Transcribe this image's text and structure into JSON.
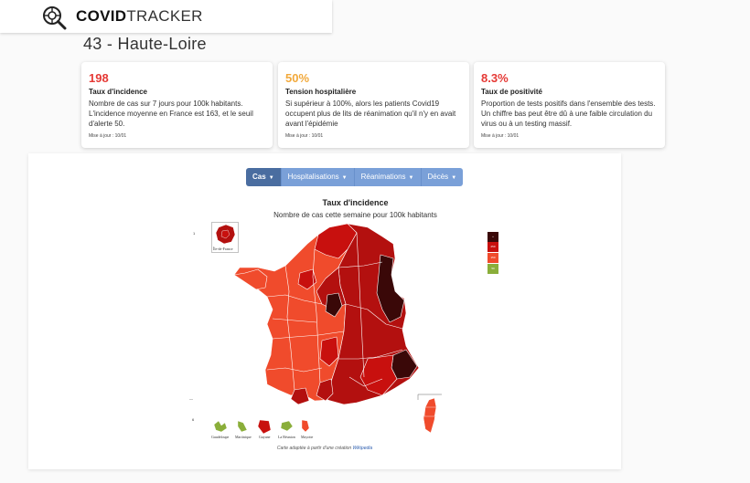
{
  "header": {
    "brand_bold": "COVID",
    "brand_light": "TRACKER",
    "logo_icon": "virus-magnifier-icon"
  },
  "page": {
    "title": "43 - Haute-Loire"
  },
  "cards": [
    {
      "value": "198",
      "value_color": "#e53935",
      "title": "Taux d'incidence",
      "description": "Nombre de cas sur 7 jours pour 100k habitants. L'incidence moyenne en France est 163, et le seuil d'alerte 50.",
      "updated": "Mise à jour : 10/01"
    },
    {
      "value": "50%",
      "value_color": "#f2a93b",
      "title": "Tension hospitalière",
      "description": "Si supérieur à 100%, alors les patients Covid19 occupent plus de lits de réanimation qu'il n'y en avait avant l'épidémie",
      "updated": "Mise à jour : 10/01"
    },
    {
      "value": "8.3%",
      "value_color": "#e53935",
      "title": "Taux de positivité",
      "description": "Proportion de tests positifs dans l'ensemble des tests. Un chiffre bas peut être dû à une faible circulation du virus ou à un testing massif.",
      "updated": "Mise à jour : 10/01"
    }
  ],
  "tabs": [
    {
      "label": "Cas",
      "active": true
    },
    {
      "label": "Hospitalisations",
      "active": false
    },
    {
      "label": "Réanimations",
      "active": false
    },
    {
      "label": "Décès",
      "active": false
    }
  ],
  "map": {
    "title": "Taux d'incidence",
    "subtitle": "Nombre de cas cette semaine pour 100k habitants",
    "inset_label": "Île-de-France",
    "legend": [
      {
        "label": "+",
        "color": "#3a0808"
      },
      {
        "label": "250",
        "color": "#c8100e"
      },
      {
        "label": "150",
        "color": "#f04b2c"
      },
      {
        "label": "50",
        "color": "#8aae3a"
      }
    ],
    "islands": [
      "Guadeloupe",
      "Martinique",
      "Guyane",
      "La Réunion",
      "Mayotte"
    ],
    "credit_text": "Carte adaptée à partir d'une création ",
    "credit_link": "Wikipedia",
    "ticks": [
      "1",
      "—",
      "6"
    ],
    "colors": {
      "very_high": "#3a0808",
      "high": "#b3100f",
      "high_alt": "#c8100e",
      "medium": "#f04b2c",
      "low": "#8aae3a"
    }
  }
}
